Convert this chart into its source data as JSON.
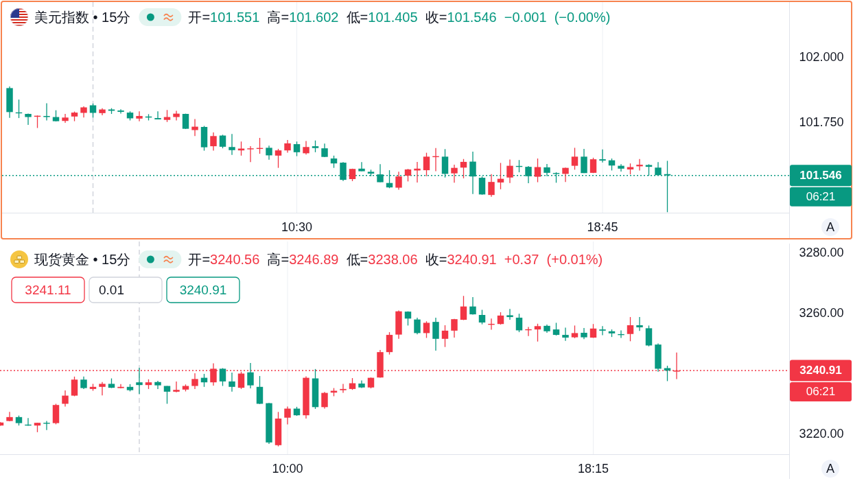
{
  "chart_data": [
    {
      "type": "candlestick",
      "title": "美元指数 • 15分",
      "subtitle": "开=101.551 高=101.602 低=101.405 收=101.546 −0.001 (−0.00%)",
      "x": [
        2.75,
        3,
        3.25,
        3.5,
        3.75,
        4,
        4.25,
        4.5,
        4.75,
        5,
        5.25,
        5.5,
        5.75,
        6,
        6.25,
        6.5,
        6.75,
        7,
        7.25,
        7.5,
        7.75,
        8,
        8.25,
        8.5,
        8.75,
        9,
        9.25,
        9.5,
        9.75,
        10,
        10.25,
        10.5,
        10.75,
        11,
        11.25,
        11.5,
        11.75,
        12,
        12.25,
        12.5,
        12.75,
        13,
        13.25,
        13.5,
        13.75,
        14,
        14.25,
        14.5,
        14.75,
        15,
        15.25,
        15.5,
        15.75,
        16,
        16.25,
        16.5,
        16.75,
        17,
        17.25,
        17.5,
        17.75,
        18,
        18.25,
        18.5,
        18.75,
        19,
        19.25,
        19.5,
        19.75,
        20,
        20.25,
        20.5
      ],
      "ohlc": [
        [
          101.881,
          101.887,
          101.767,
          101.789
        ],
        [
          101.787,
          101.837,
          101.766,
          101.785
        ],
        [
          101.782,
          101.783,
          101.74,
          101.77
        ],
        [
          101.771,
          101.776,
          101.728,
          101.775
        ],
        [
          101.774,
          101.823,
          101.757,
          101.77
        ],
        [
          101.77,
          101.796,
          101.753,
          101.754
        ],
        [
          101.755,
          101.782,
          101.748,
          101.768
        ],
        [
          101.772,
          101.791,
          101.754,
          101.787
        ],
        [
          101.786,
          101.811,
          101.768,
          101.807
        ],
        [
          101.815,
          101.822,
          101.768,
          101.786
        ],
        [
          101.785,
          101.804,
          101.777,
          101.799
        ],
        [
          101.799,
          101.804,
          101.782,
          101.794
        ],
        [
          101.795,
          101.8,
          101.783,
          101.79
        ],
        [
          101.787,
          101.792,
          101.757,
          101.765
        ],
        [
          101.764,
          101.792,
          101.754,
          101.774
        ],
        [
          101.772,
          101.781,
          101.757,
          101.768
        ],
        [
          101.766,
          101.792,
          101.761,
          101.761
        ],
        [
          101.759,
          101.797,
          101.751,
          101.77
        ],
        [
          101.77,
          101.794,
          101.757,
          101.783
        ],
        [
          101.782,
          101.783,
          101.724,
          101.725
        ],
        [
          101.72,
          101.762,
          101.697,
          101.733
        ],
        [
          101.732,
          101.736,
          101.641,
          101.654
        ],
        [
          101.658,
          101.711,
          101.641,
          101.697
        ],
        [
          101.699,
          101.702,
          101.65,
          101.656
        ],
        [
          101.655,
          101.705,
          101.625,
          101.643
        ],
        [
          101.642,
          101.676,
          101.622,
          101.649
        ],
        [
          101.647,
          101.658,
          101.597,
          101.649
        ],
        [
          101.648,
          101.69,
          101.629,
          101.651
        ],
        [
          101.652,
          101.66,
          101.606,
          101.623
        ],
        [
          101.622,
          101.648,
          101.575,
          101.642
        ],
        [
          101.642,
          101.682,
          101.633,
          101.669
        ],
        [
          101.666,
          101.676,
          101.62,
          101.635
        ],
        [
          101.631,
          101.678,
          101.626,
          101.655
        ],
        [
          101.658,
          101.68,
          101.635,
          101.651
        ],
        [
          101.65,
          101.668,
          101.616,
          101.617
        ],
        [
          101.611,
          101.622,
          101.575,
          101.592
        ],
        [
          101.595,
          101.597,
          101.525,
          101.529
        ],
        [
          101.532,
          101.572,
          101.524,
          101.571
        ],
        [
          101.572,
          101.597,
          101.562,
          101.562
        ],
        [
          101.56,
          101.568,
          101.543,
          101.553
        ],
        [
          101.55,
          101.589,
          101.52,
          101.52
        ],
        [
          101.517,
          101.566,
          101.497,
          101.5
        ],
        [
          101.499,
          101.56,
          101.491,
          101.542
        ],
        [
          101.545,
          101.571,
          101.523,
          101.569
        ],
        [
          101.565,
          101.598,
          101.519,
          101.572
        ],
        [
          101.566,
          101.633,
          101.543,
          101.618
        ],
        [
          101.617,
          101.651,
          101.562,
          101.619
        ],
        [
          101.618,
          101.647,
          101.538,
          101.552
        ],
        [
          101.554,
          101.587,
          101.518,
          101.575
        ],
        [
          101.576,
          101.609,
          101.535,
          101.598
        ],
        [
          101.599,
          101.637,
          101.475,
          101.542
        ],
        [
          101.537,
          101.542,
          101.472,
          101.473
        ],
        [
          101.471,
          101.551,
          101.464,
          101.521
        ],
        [
          101.519,
          101.594,
          101.493,
          101.533
        ],
        [
          101.538,
          101.607,
          101.517,
          101.583
        ],
        [
          101.582,
          101.605,
          101.558,
          101.579
        ],
        [
          101.579,
          101.582,
          101.516,
          101.543
        ],
        [
          101.541,
          101.611,
          101.52,
          101.578
        ],
        [
          101.577,
          101.59,
          101.543,
          101.556
        ],
        [
          101.555,
          101.558,
          101.518,
          101.552
        ],
        [
          101.552,
          101.576,
          101.521,
          101.575
        ],
        [
          101.583,
          101.652,
          101.568,
          101.618
        ],
        [
          101.618,
          101.648,
          101.555,
          101.555
        ],
        [
          101.556,
          101.614,
          101.555,
          101.608
        ],
        [
          101.608,
          101.646,
          101.596,
          101.603
        ],
        [
          101.604,
          101.611,
          101.565,
          101.584
        ],
        [
          101.583,
          101.589,
          101.561,
          101.572
        ],
        [
          101.569,
          101.592,
          101.55,
          101.578
        ],
        [
          101.581,
          101.609,
          101.565,
          101.587
        ],
        [
          101.586,
          101.589,
          101.545,
          101.579
        ],
        [
          101.576,
          101.597,
          101.545,
          101.547
        ],
        [
          101.551,
          101.602,
          101.405,
          101.546
        ]
      ],
      "colors": [
        "#089981",
        "#089981",
        "#089981",
        "#f23645",
        "#089981",
        "#089981",
        "#f23645",
        "#f23645",
        "#f23645",
        "#089981",
        "#f23645",
        "#089981",
        "#089981",
        "#089981",
        "#f23645",
        "#089981",
        "#089981",
        "#f23645",
        "#f23645",
        "#089981",
        "#f23645",
        "#089981",
        "#f23645",
        "#089981",
        "#089981",
        "#f23645",
        "#f23645",
        "#f23645",
        "#089981",
        "#f23645",
        "#f23645",
        "#089981",
        "#f23645",
        "#089981",
        "#089981",
        "#089981",
        "#089981",
        "#f23645",
        "#089981",
        "#089981",
        "#089981",
        "#089981",
        "#f23645",
        "#f23645",
        "#f23645",
        "#f23645",
        "#f23645",
        "#089981",
        "#f23645",
        "#f23645",
        "#089981",
        "#089981",
        "#f23645",
        "#f23645",
        "#f23645",
        "#089981",
        "#089981",
        "#f23645",
        "#089981",
        "#089981",
        "#f23645",
        "#f23645",
        "#089981",
        "#f23645",
        "#089981",
        "#089981",
        "#089981",
        "#f23645",
        "#f23645",
        "#089981",
        "#089981",
        "#089981"
      ],
      "xlim": [
        2.546,
        23.787
      ],
      "ylim": [
        101.403,
        102.211
      ],
      "xticks": [
        {
          "value": 10.5,
          "label": "10:30"
        },
        {
          "value": 18.75,
          "label": "18:45"
        }
      ],
      "yticks": [
        {
          "value": 102,
          "label": "102.000"
        },
        {
          "value": 101.75,
          "label": "101.750"
        }
      ],
      "grid": "x",
      "ref_lines": [
        {
          "axis": "x",
          "value": 5,
          "color": "#d1d4dc",
          "line_style": "dashed"
        },
        {
          "axis": "y",
          "value": 101.546,
          "label": "101.546",
          "color": "#089981",
          "line_style": "dotted"
        }
      ],
      "annotations": [
        "06:21",
        "A"
      ]
    },
    {
      "type": "candlestick",
      "title": "现货黄金 • 15分",
      "subtitle": "开=3240.56 高=3246.89 低=3238.06 收=3240.91 +0.37 (+0.01%)",
      "x": [
        2.25,
        2.5,
        2.75,
        3,
        3.25,
        3.5,
        3.75,
        4,
        4.25,
        4.5,
        4.75,
        5,
        5.25,
        5.5,
        5.75,
        6,
        6.25,
        6.5,
        6.75,
        7,
        7.25,
        7.5,
        7.75,
        8,
        8.25,
        8.5,
        8.75,
        9,
        9.25,
        9.5,
        9.75,
        10,
        10.25,
        10.5,
        10.75,
        11,
        11.25,
        11.5,
        11.75,
        12,
        12.25,
        12.5,
        12.75,
        13,
        13.25,
        13.5,
        13.75,
        14,
        14.25,
        14.5,
        14.75,
        15,
        15.25,
        15.5,
        15.75,
        16,
        16.25,
        16.5,
        16.75,
        17,
        17.25,
        17.5,
        17.75,
        18,
        18.25,
        18.5,
        18.75,
        19,
        19.25,
        19.5,
        19.75,
        20,
        20.25,
        20.5
      ],
      "ohlc": [
        [
          3222.7,
          3223.8,
          3222.6,
          3223.7
        ],
        [
          3224.2,
          3227.2,
          3224.1,
          3225.5
        ],
        [
          3225.5,
          3226.0,
          3222.7,
          3223.5
        ],
        [
          3223.0,
          3225.2,
          3222.6,
          3222.7
        ],
        [
          3222.7,
          3223.6,
          3220.5,
          3223.6
        ],
        [
          3223.6,
          3224.2,
          3221.2,
          3223.3
        ],
        [
          3223.5,
          3229.9,
          3223.1,
          3229.5
        ],
        [
          3229.9,
          3234.3,
          3229.0,
          3232.6
        ],
        [
          3232.6,
          3238.9,
          3232.4,
          3237.9
        ],
        [
          3237.9,
          3238.9,
          3234.8,
          3235.1
        ],
        [
          3234.8,
          3236.5,
          3234.2,
          3235.5
        ],
        [
          3235.5,
          3237.1,
          3232.7,
          3236.5
        ],
        [
          3236.5,
          3238.3,
          3235.1,
          3235.2
        ],
        [
          3235.1,
          3236.4,
          3235.0,
          3235.5
        ],
        [
          3235.5,
          3236.4,
          3234.0,
          3234.4
        ],
        [
          3237.0,
          3241.8,
          3233.1,
          3236.1
        ],
        [
          3236.1,
          3238.0,
          3234.8,
          3237.0
        ],
        [
          3237.1,
          3237.5,
          3234.8,
          3236.0
        ],
        [
          3235.8,
          3235.8,
          3229.9,
          3233.9
        ],
        [
          3233.9,
          3237.3,
          3233.7,
          3234.5
        ],
        [
          3234.6,
          3236.3,
          3234.0,
          3235.8
        ],
        [
          3235.8,
          3240.0,
          3234.8,
          3238.1
        ],
        [
          3238.5,
          3239.8,
          3235.5,
          3237.0
        ],
        [
          3237.0,
          3243.3,
          3235.9,
          3241.5
        ],
        [
          3241.5,
          3241.7,
          3235.8,
          3237.3
        ],
        [
          3237.3,
          3240.2,
          3233.9,
          3235.5
        ],
        [
          3235.2,
          3240.5,
          3234.8,
          3239.9
        ],
        [
          3240.3,
          3243.4,
          3235.0,
          3236.0
        ],
        [
          3235.5,
          3239.1,
          3229.8,
          3229.9
        ],
        [
          3230.1,
          3230.2,
          3216.6,
          3217.1
        ],
        [
          3216.2,
          3227.2,
          3215.8,
          3225.0
        ],
        [
          3225.3,
          3229.0,
          3223.1,
          3228.3
        ],
        [
          3228.3,
          3228.9,
          3225.9,
          3226.1
        ],
        [
          3226.1,
          3239.0,
          3225.0,
          3238.5
        ],
        [
          3238.3,
          3241.4,
          3228.2,
          3228.8
        ],
        [
          3228.8,
          3233.8,
          3228.3,
          3233.5
        ],
        [
          3233.6,
          3235.1,
          3232.4,
          3234.2
        ],
        [
          3234.4,
          3236.5,
          3233.5,
          3234.8
        ],
        [
          3234.8,
          3238.4,
          3234.5,
          3236.7
        ],
        [
          3236.6,
          3237.6,
          3235.1,
          3235.3
        ],
        [
          3235.3,
          3238.6,
          3235.0,
          3238.5
        ],
        [
          3238.6,
          3247.7,
          3238.5,
          3247.0
        ],
        [
          3247.0,
          3253.6,
          3246.2,
          3252.7
        ],
        [
          3252.8,
          3260.8,
          3251.4,
          3260.5
        ],
        [
          3260.4,
          3260.5,
          3255.8,
          3258.1
        ],
        [
          3257.8,
          3258.4,
          3252.9,
          3253.3
        ],
        [
          3253.3,
          3257.2,
          3251.7,
          3256.7
        ],
        [
          3257.0,
          3258.4,
          3247.5,
          3251.4
        ],
        [
          3251.4,
          3255.9,
          3248.7,
          3254.1
        ],
        [
          3254.1,
          3258.0,
          3251.8,
          3257.9
        ],
        [
          3257.7,
          3265.6,
          3257.6,
          3262.1
        ],
        [
          3262.1,
          3265.2,
          3259.4,
          3259.5
        ],
        [
          3259.3,
          3261.0,
          3256.2,
          3256.8
        ],
        [
          3256.1,
          3258.1,
          3254.4,
          3256.3
        ],
        [
          3256.3,
          3260.2,
          3256.1,
          3259.1
        ],
        [
          3259.2,
          3261.3,
          3257.7,
          3258.6
        ],
        [
          3258.4,
          3259.7,
          3253.6,
          3254.2
        ],
        [
          3254.3,
          3255.3,
          3252.3,
          3254.5
        ],
        [
          3254.5,
          3256.4,
          3250.5,
          3255.6
        ],
        [
          3255.7,
          3256.1,
          3253.4,
          3253.9
        ],
        [
          3254.5,
          3256.7,
          3252.5,
          3252.7
        ],
        [
          3252.7,
          3255.1,
          3250.7,
          3251.8
        ],
        [
          3251.9,
          3255.8,
          3251.6,
          3253.3
        ],
        [
          3253.4,
          3255.0,
          3251.3,
          3251.9
        ],
        [
          3251.8,
          3256.3,
          3251.7,
          3254.8
        ],
        [
          3254.5,
          3255.6,
          3252.6,
          3254.1
        ],
        [
          3253.9,
          3254.5,
          3252.0,
          3253.2
        ],
        [
          3252.9,
          3254.2,
          3251.7,
          3252.7
        ],
        [
          3253.0,
          3258.6,
          3250.6,
          3255.9
        ],
        [
          3255.9,
          3258.6,
          3254.0,
          3255.2
        ],
        [
          3254.9,
          3255.8,
          3248.9,
          3249.2
        ],
        [
          3249.5,
          3249.9,
          3240.5,
          3241.5
        ],
        [
          3241.7,
          3242.5,
          3237.4,
          3240.9
        ],
        [
          3240.56,
          3246.89,
          3238.06,
          3240.91
        ]
      ],
      "colors": [
        "#f23645",
        "#f23645",
        "#089981",
        "#089981",
        "#f23645",
        "#089981",
        "#f23645",
        "#f23645",
        "#f23645",
        "#089981",
        "#f23645",
        "#f23645",
        "#089981",
        "#f23645",
        "#089981",
        "#089981",
        "#f23645",
        "#089981",
        "#089981",
        "#f23645",
        "#f23645",
        "#f23645",
        "#089981",
        "#f23645",
        "#089981",
        "#089981",
        "#f23645",
        "#089981",
        "#089981",
        "#089981",
        "#f23645",
        "#f23645",
        "#089981",
        "#f23645",
        "#089981",
        "#f23645",
        "#f23645",
        "#f23645",
        "#f23645",
        "#089981",
        "#f23645",
        "#f23645",
        "#f23645",
        "#f23645",
        "#089981",
        "#089981",
        "#f23645",
        "#089981",
        "#f23645",
        "#f23645",
        "#f23645",
        "#089981",
        "#089981",
        "#f23645",
        "#f23645",
        "#089981",
        "#089981",
        "#f23645",
        "#f23645",
        "#089981",
        "#089981",
        "#089981",
        "#f23645",
        "#089981",
        "#f23645",
        "#089981",
        "#089981",
        "#089981",
        "#f23645",
        "#089981",
        "#089981",
        "#089981",
        "#089981",
        "#f23645"
      ],
      "xlim": [
        2.241,
        23.537
      ],
      "ylim": [
        3213.2,
        3283.6
      ],
      "xticks": [
        {
          "value": 10,
          "label": "10:00"
        },
        {
          "value": 18.25,
          "label": "18:15"
        }
      ],
      "yticks": [
        {
          "value": 3280,
          "label": "3280.00"
        },
        {
          "value": 3260,
          "label": "3260.00"
        },
        {
          "value": 3220,
          "label": "3220.00"
        }
      ],
      "grid": "x",
      "ref_lines": [
        {
          "axis": "x",
          "value": 6,
          "color": "#d1d4dc",
          "line_style": "dashed"
        },
        {
          "axis": "y",
          "value": 3240.91,
          "label": "3240.91",
          "color": "#f23645",
          "line_style": "dotted"
        }
      ],
      "annotations": [
        "3241.11",
        "0.01",
        "3240.91",
        "06:21",
        "A"
      ]
    }
  ]
}
